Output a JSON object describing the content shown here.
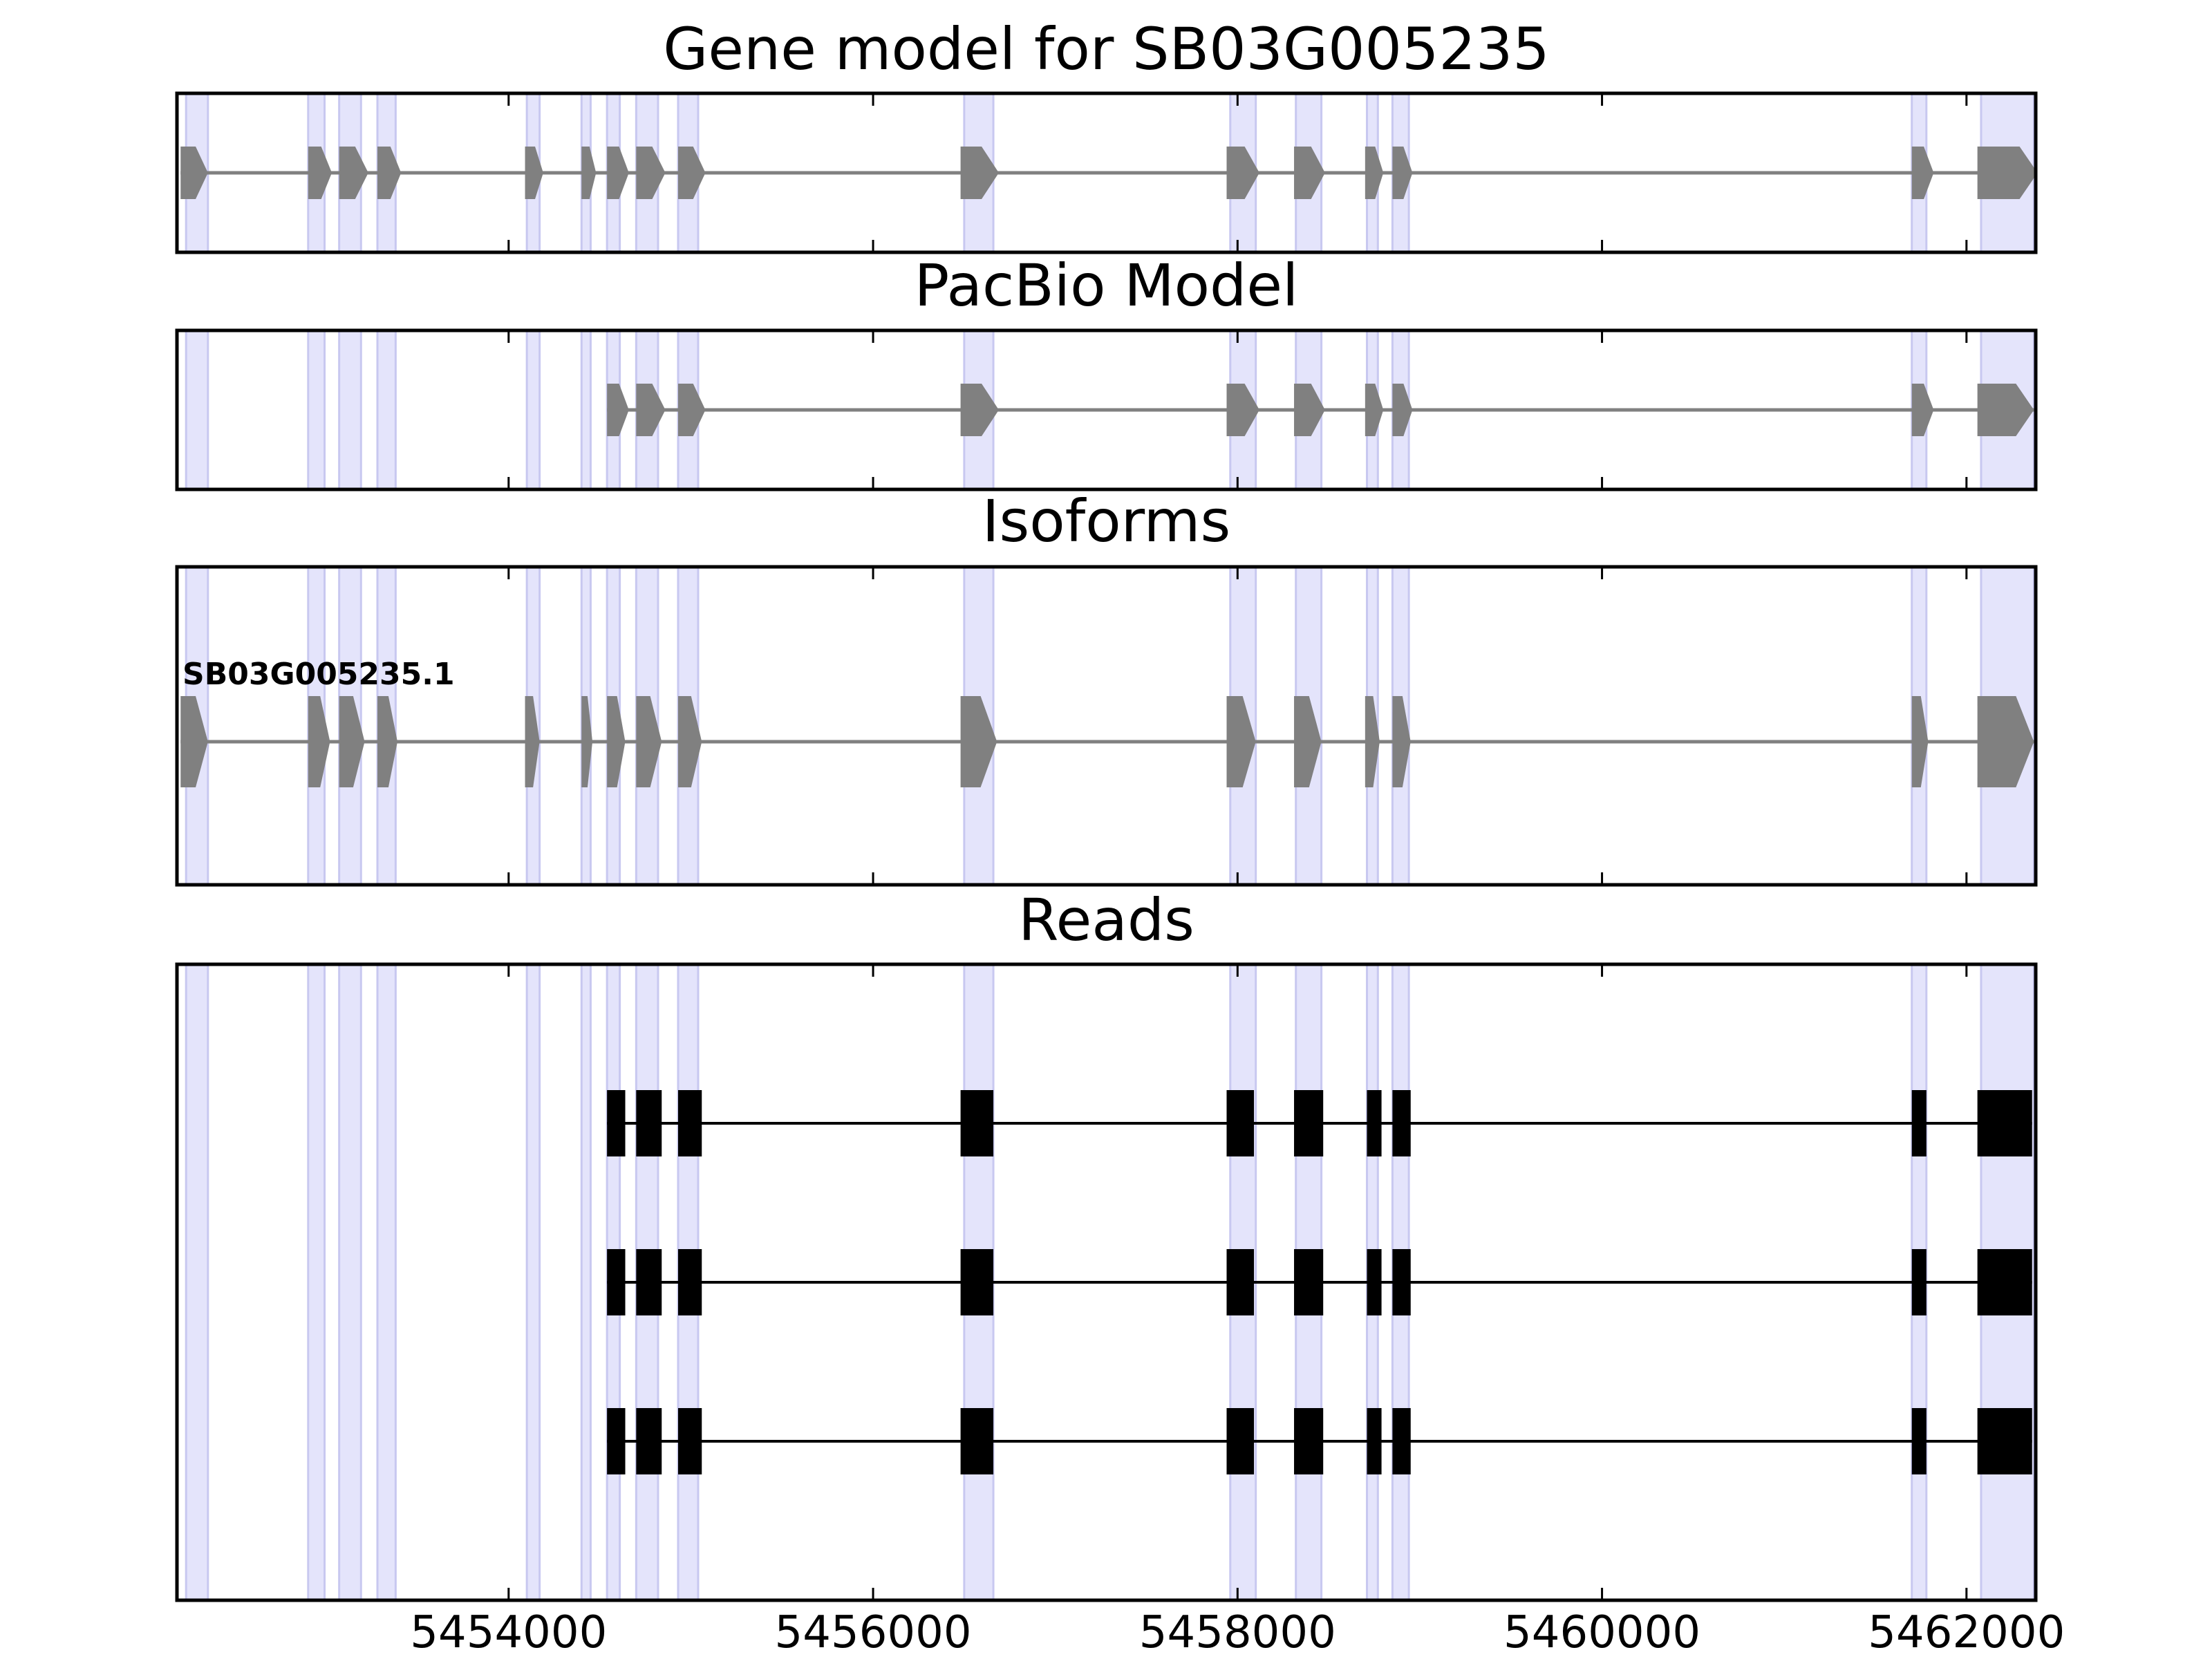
{
  "colors": {
    "exon_band": "#e4e4fb",
    "exon_band_edge": "#c8c8f0",
    "gene_model": "#808080",
    "read": "#000000"
  },
  "chart_data": {
    "type": "gene-model-tracks",
    "xlim": [
      5452180,
      5462380
    ],
    "xticks": [
      5454000,
      5456000,
      5458000,
      5460000,
      5462000
    ],
    "xtick_labels": [
      "5454000",
      "5456000",
      "5458000",
      "5460000",
      "5462000"
    ],
    "exon_bands": [
      [
        5452230,
        5452350
      ],
      [
        5452900,
        5452990
      ],
      [
        5453070,
        5453190
      ],
      [
        5453280,
        5453380
      ],
      [
        5454100,
        5454170
      ],
      [
        5454400,
        5454450
      ],
      [
        5454540,
        5454610
      ],
      [
        5454700,
        5454820
      ],
      [
        5454930,
        5455040
      ],
      [
        5456500,
        5456660
      ],
      [
        5457960,
        5458100
      ],
      [
        5458320,
        5458460
      ],
      [
        5458710,
        5458770
      ],
      [
        5458850,
        5458940
      ],
      [
        5461700,
        5461780
      ],
      [
        5462080,
        5462370
      ]
    ],
    "panels": [
      {
        "title": "Gene model for SB03G005235",
        "kind": "gene",
        "y_rows": [
          0.5
        ],
        "exons": [
          [
            5452200,
            5452350
          ],
          [
            5452900,
            5453030
          ],
          [
            5453070,
            5453230
          ],
          [
            5453280,
            5453410
          ],
          [
            5454090,
            5454190
          ],
          [
            5454400,
            5454480
          ],
          [
            5454540,
            5454660
          ],
          [
            5454700,
            5454860
          ],
          [
            5454930,
            5455080
          ],
          [
            5456480,
            5456690
          ],
          [
            5457940,
            5458120
          ],
          [
            5458310,
            5458480
          ],
          [
            5458700,
            5458800
          ],
          [
            5458850,
            5458960
          ],
          [
            5461700,
            5461820
          ],
          [
            5462060,
            5462390
          ]
        ]
      },
      {
        "title": "PacBio Model",
        "kind": "gene",
        "y_rows": [
          0.5
        ],
        "exons": [
          [
            5454540,
            5454660
          ],
          [
            5454700,
            5454860
          ],
          [
            5454930,
            5455080
          ],
          [
            5456480,
            5456690
          ],
          [
            5457940,
            5458120
          ],
          [
            5458310,
            5458480
          ],
          [
            5458700,
            5458800
          ],
          [
            5458850,
            5458960
          ],
          [
            5461700,
            5461820
          ],
          [
            5462060,
            5462370
          ]
        ]
      },
      {
        "title": "Isoforms",
        "kind": "gene",
        "isoform_label": "SB03G005235.1",
        "y_rows": [
          0.45
        ],
        "exons": [
          [
            5452200,
            5452350
          ],
          [
            5452900,
            5453020
          ],
          [
            5453070,
            5453210
          ],
          [
            5453280,
            5453390
          ],
          [
            5454090,
            5454170
          ],
          [
            5454400,
            5454460
          ],
          [
            5454540,
            5454640
          ],
          [
            5454700,
            5454840
          ],
          [
            5454930,
            5455060
          ],
          [
            5456480,
            5456680
          ],
          [
            5457940,
            5458100
          ],
          [
            5458310,
            5458460
          ],
          [
            5458700,
            5458780
          ],
          [
            5458850,
            5458950
          ],
          [
            5461700,
            5461790
          ],
          [
            5462060,
            5462370
          ]
        ]
      },
      {
        "title": "Reads",
        "kind": "read",
        "y_rows": [
          0.75,
          0.5,
          0.25
        ],
        "exons": [
          [
            5454540,
            5454640
          ],
          [
            5454700,
            5454840
          ],
          [
            5454930,
            5455060
          ],
          [
            5456480,
            5456660
          ],
          [
            5457940,
            5458090
          ],
          [
            5458310,
            5458470
          ],
          [
            5458710,
            5458790
          ],
          [
            5458850,
            5458950
          ],
          [
            5461700,
            5461780
          ],
          [
            5462060,
            5462360
          ]
        ]
      }
    ]
  }
}
